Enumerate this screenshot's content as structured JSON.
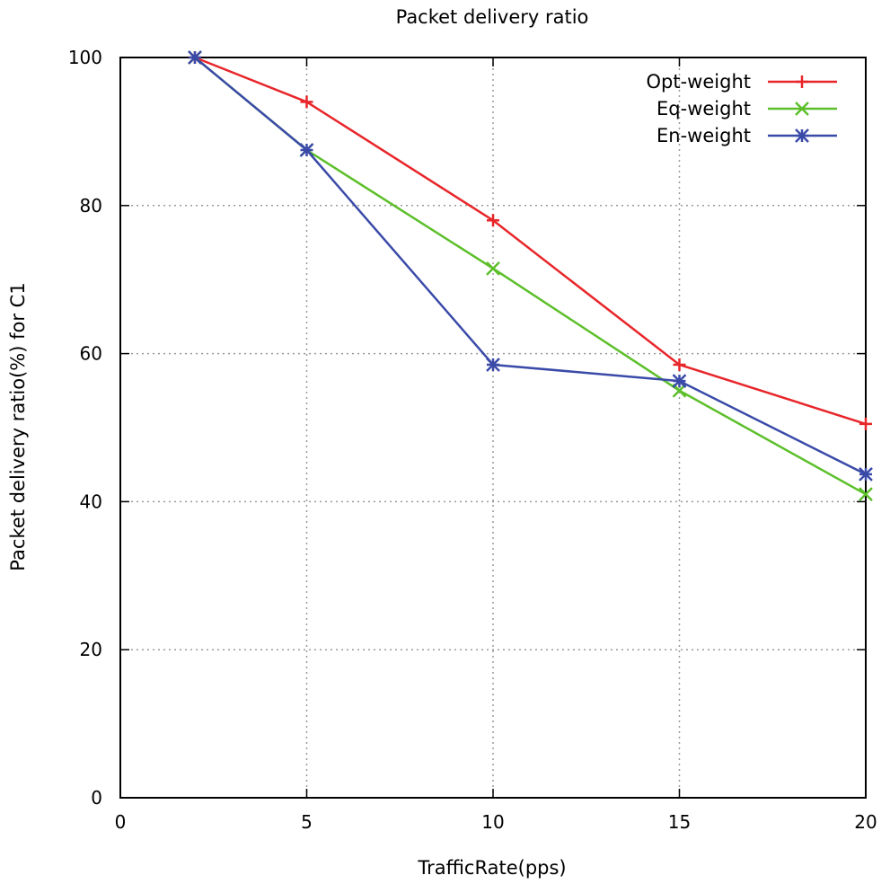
{
  "chart_data": {
    "type": "line",
    "title": "Packet delivery ratio",
    "xlabel": "TrafficRate(pps)",
    "ylabel": "Packet delivery ratio(%)  for C1",
    "xlim": [
      0,
      20
    ],
    "ylim": [
      0,
      100
    ],
    "xticks": [
      0,
      5,
      10,
      15,
      20
    ],
    "yticks": [
      0,
      20,
      40,
      60,
      80,
      100
    ],
    "grid": true,
    "legend_position": "top-right",
    "x": [
      2,
      5,
      10,
      15,
      20
    ],
    "series": [
      {
        "name": "Opt-weight",
        "color": "#e8262a",
        "marker": "plus",
        "values": [
          100,
          94,
          78,
          58.5,
          50.5
        ]
      },
      {
        "name": "Eq-weight",
        "color": "#5cbf2a",
        "marker": "cross",
        "values": [
          100,
          87.5,
          71.5,
          55,
          41
        ]
      },
      {
        "name": "En-weight",
        "color": "#3a4aa8",
        "marker": "star",
        "values": [
          100,
          87.5,
          58.5,
          56.3,
          43.7
        ]
      }
    ]
  }
}
